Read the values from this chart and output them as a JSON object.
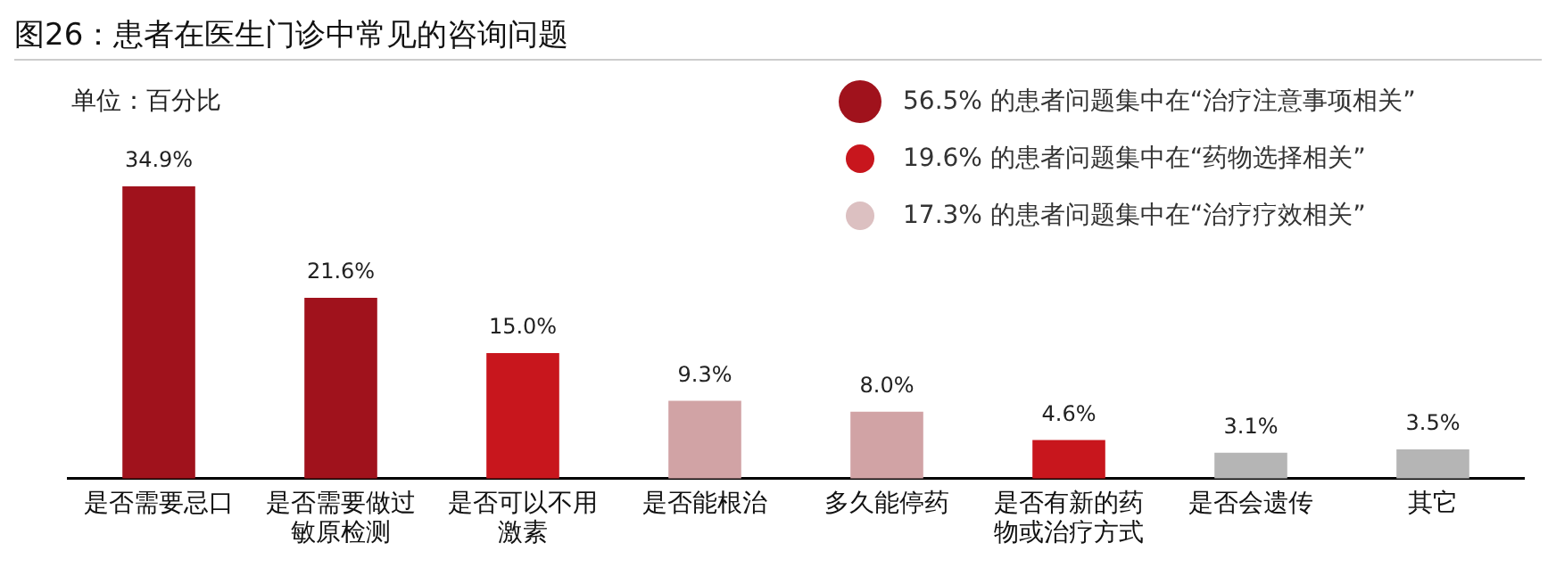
{
  "chart_data": {
    "type": "bar",
    "title": "图26：患者在医生门诊中常见的咨询问题",
    "categories": [
      "是否需要忌口",
      "是否需要做过敏原检测",
      "是否可以不用激素",
      "是否能根治",
      "多久能停药",
      "是否有新的药物或治疗方式",
      "是否会遗传",
      "其它"
    ],
    "values": [
      34.9,
      21.6,
      15.0,
      9.3,
      8.0,
      4.6,
      3.1,
      3.5
    ],
    "colors": [
      "#a0121c",
      "#a0121c",
      "#c8161d",
      "#d1a3a5",
      "#d1a3a5",
      "#c8161d",
      "#b5b5b5",
      "#b5b5b5"
    ],
    "value_labels": [
      "34.9%",
      "21.6%",
      "15.0%",
      "9.3%",
      "8.0%",
      "4.6%",
      "3.1%",
      "3.5%"
    ],
    "grid": false,
    "legend": false,
    "annotations": [
      "单位：百分比",
      "56.5% 的患者问题集中在“治疗注意事项相关”",
      "19.6% 的患者问题集中在“药物选择相关”",
      "17.3% 的患者问题集中在“治疗疗效相关”"
    ]
  }
}
